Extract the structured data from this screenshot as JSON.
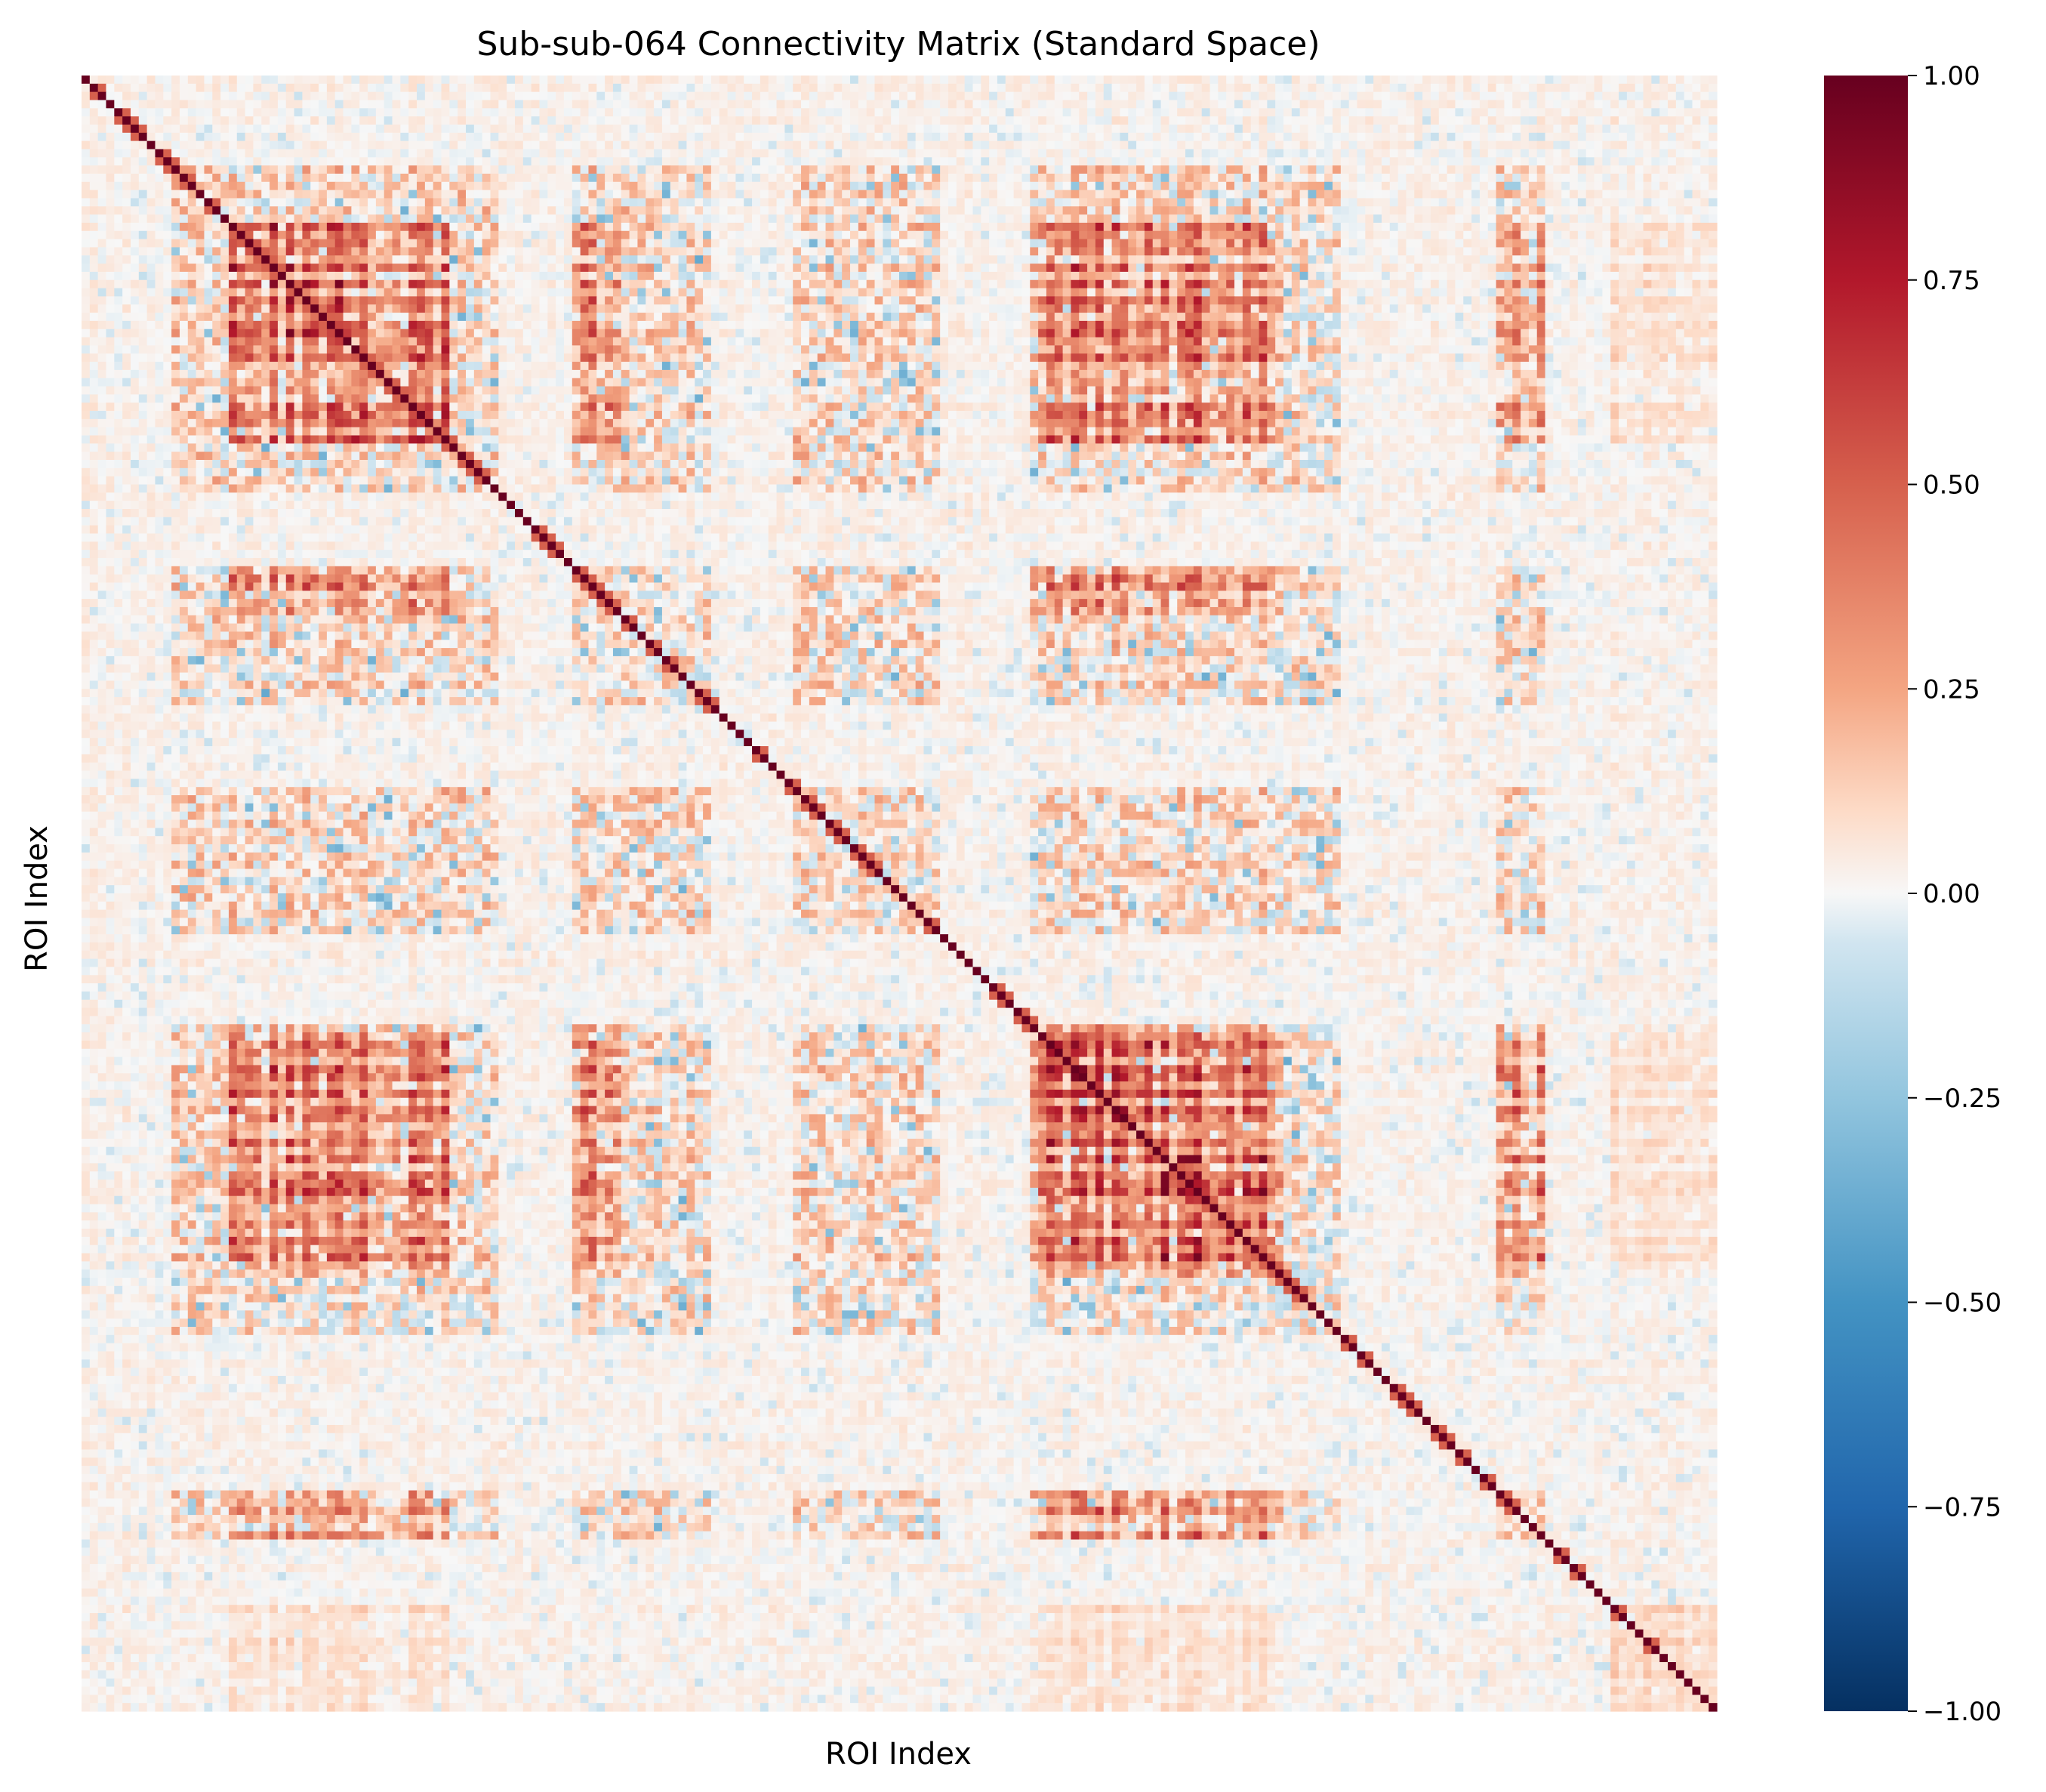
{
  "chart_data": {
    "type": "heatmap",
    "title": "Sub-sub-064 Connectivity Matrix (Standard Space)",
    "xlabel": "ROI Index",
    "ylabel": "ROI Index",
    "colormap": "RdBu_r",
    "vmin": -1.0,
    "vmax": 1.0,
    "colorbar_ticks": [
      "1.00",
      "0.75",
      "0.50",
      "0.25",
      "0.00",
      "−0.25",
      "−0.50",
      "−0.75",
      "−1.00"
    ],
    "colorbar_tick_values": [
      1.0,
      0.75,
      0.5,
      0.25,
      0.0,
      -0.25,
      -0.5,
      -0.75,
      -1.0
    ],
    "n_rois": 200,
    "diagonal_value": 1.0,
    "network_block_bounds": [
      0,
      6,
      11,
      18,
      32,
      45,
      51,
      60,
      66,
      71,
      77,
      87,
      105,
      116,
      131,
      147,
      154,
      162,
      173,
      179,
      187,
      200
    ],
    "strong_blocks": [
      {
        "rows": [
          18,
          32
        ],
        "cols": [
          18,
          32
        ],
        "mean": 0.55
      },
      {
        "rows": [
          32,
          45
        ],
        "cols": [
          32,
          45
        ],
        "mean": 0.58
      },
      {
        "rows": [
          18,
          32
        ],
        "cols": [
          32,
          45
        ],
        "mean": 0.45
      },
      {
        "rows": [
          116,
          131
        ],
        "cols": [
          116,
          131
        ],
        "mean": 0.6
      },
      {
        "rows": [
          131,
          147
        ],
        "cols": [
          131,
          147
        ],
        "mean": 0.62
      },
      {
        "rows": [
          116,
          131
        ],
        "cols": [
          131,
          147
        ],
        "mean": 0.5
      },
      {
        "rows": [
          18,
          45
        ],
        "cols": [
          116,
          147
        ],
        "mean": 0.45
      },
      {
        "rows": [
          60,
          66
        ],
        "cols": [
          18,
          45
        ],
        "mean": 0.45
      },
      {
        "rows": [
          60,
          66
        ],
        "cols": [
          116,
          147
        ],
        "mean": 0.45
      },
      {
        "rows": [
          173,
          179
        ],
        "cols": [
          18,
          45
        ],
        "mean": 0.35
      },
      {
        "rows": [
          173,
          179
        ],
        "cols": [
          116,
          147
        ],
        "mean": 0.4
      },
      {
        "rows": [
          187,
          200
        ],
        "cols": [
          18,
          45
        ],
        "mean": 0.35
      },
      {
        "rows": [
          187,
          200
        ],
        "cols": [
          116,
          147
        ],
        "mean": 0.35
      },
      {
        "rows": [
          187,
          200
        ],
        "cols": [
          187,
          200
        ],
        "mean": 0.45
      }
    ],
    "weak_bands": [
      0,
      6,
      51,
      77,
      105,
      154,
      162,
      179,
      187
    ],
    "background_mean": 0.12
  }
}
